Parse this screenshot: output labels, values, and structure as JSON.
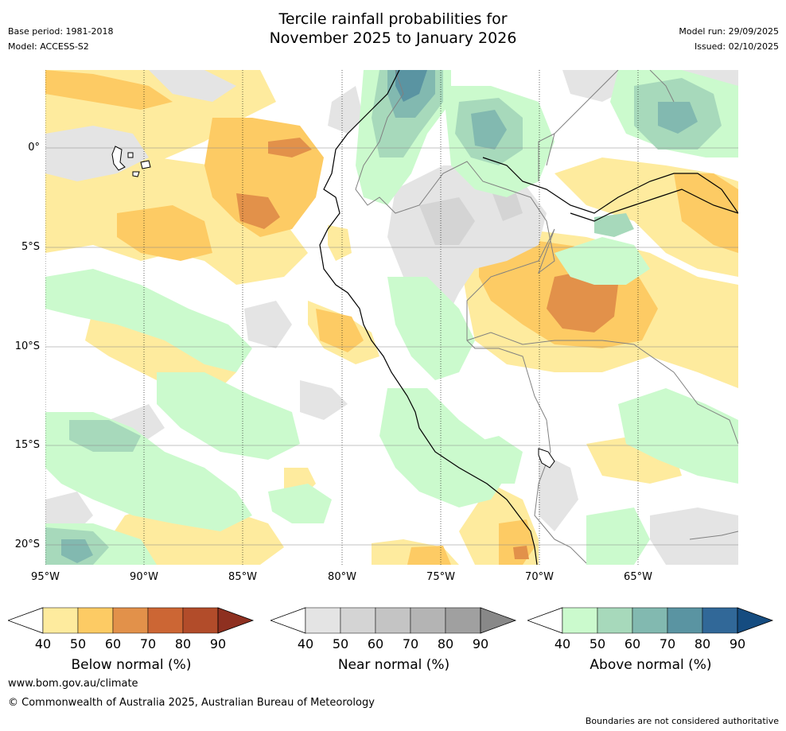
{
  "title": {
    "line1": "Tercile rainfall probabilities for",
    "line2": "November 2025 to January 2026"
  },
  "meta": {
    "base_period": "Base period: 1981-2018",
    "model": "Model: ACCESS-S2",
    "model_run": "Model run: 29/09/2025",
    "issued": "Issued: 02/10/2025"
  },
  "axes": {
    "lat_labels": [
      "0°",
      "5°S",
      "10°S",
      "15°S",
      "20°S"
    ],
    "lon_labels": [
      "95°W",
      "90°W",
      "85°W",
      "80°W",
      "75°W",
      "70°W",
      "65°W"
    ]
  },
  "colorbars": [
    {
      "label": "Below normal (%)",
      "ticks": [
        "40",
        "50",
        "60",
        "70",
        "80",
        "90"
      ],
      "colors": [
        "#ffffff",
        "#feeb9e",
        "#fdcb64",
        "#e2914a",
        "#cc6634",
        "#b24c2a",
        "#8e3020"
      ]
    },
    {
      "label": "Near normal (%)",
      "ticks": [
        "40",
        "50",
        "60",
        "70",
        "80",
        "90"
      ],
      "colors": [
        "#ffffff",
        "#e4e4e4",
        "#d4d4d4",
        "#c4c4c4",
        "#b4b4b4",
        "#a0a0a0",
        "#888888"
      ]
    },
    {
      "label": "Above normal (%)",
      "ticks": [
        "40",
        "50",
        "60",
        "70",
        "80",
        "90"
      ],
      "colors": [
        "#ffffff",
        "#cbfacd",
        "#a7d9bb",
        "#82b9b0",
        "#5a94a2",
        "#316898",
        "#154c80"
      ]
    }
  ],
  "footer": {
    "url": "www.bom.gov.au/climate",
    "copyright": "© Commonwealth of Australia 2025, Australian Bureau of Meteorology",
    "disclaimer": "Boundaries are not considered authoritative"
  }
}
